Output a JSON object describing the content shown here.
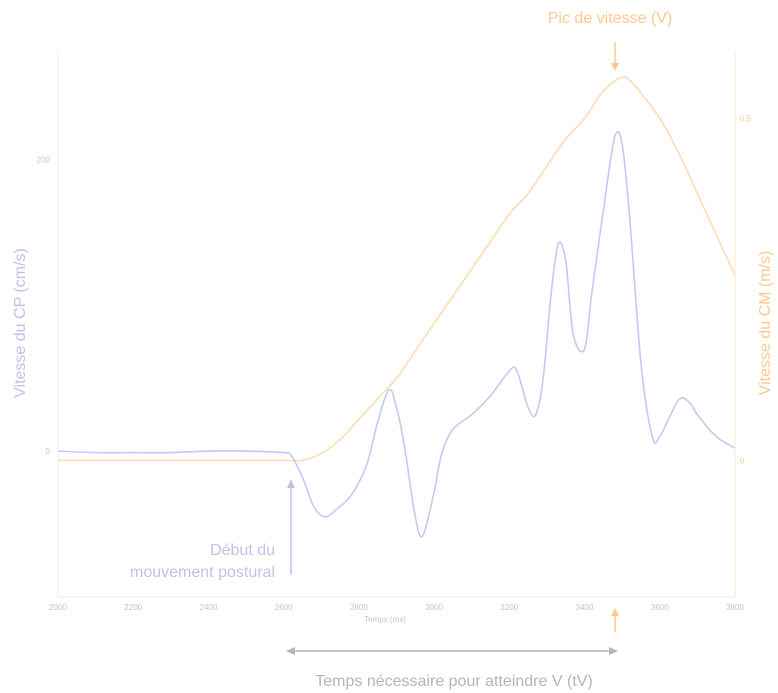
{
  "colors": {
    "cp": "#c6c9ef",
    "cm": "#ffdcb3",
    "cm_text": "#ffc890",
    "cp_text": "#bfc2ea",
    "axis": "#e6e6e6",
    "gray": "#b5b5b5",
    "tick": "#c4c4c4"
  },
  "chart_data": {
    "type": "line",
    "xlabel": "Temps (ms)",
    "xlim": [
      2000,
      3800
    ],
    "x_ticks": [
      "2000",
      "2200",
      "2400",
      "2600",
      "2800",
      "3000",
      "3200",
      "3400",
      "3600",
      "3800"
    ],
    "y_left": {
      "label": "Vitesse du CP (cm/s)",
      "lim": [
        -100,
        275
      ],
      "ticks": [
        "0",
        "200"
      ]
    },
    "y_right": {
      "label": "Vitesse du CM (m/s)",
      "lim": [
        -0.2,
        0.6
      ],
      "ticks": [
        "0",
        "0.5"
      ]
    },
    "series": [
      {
        "axis": "left",
        "x": [
          2000,
          2100,
          2200,
          2300,
          2400,
          2500,
          2600,
          2620,
          2650,
          2680,
          2710,
          2740,
          2780,
          2820,
          2850,
          2880,
          2900,
          2920,
          2950,
          2970,
          3000,
          3020,
          3050,
          3100,
          3150,
          3200,
          3220,
          3250,
          3270,
          3290,
          3310,
          3330,
          3350,
          3370,
          3400,
          3420,
          3450,
          3480,
          3500,
          3520,
          3550,
          3580,
          3600,
          3650,
          3680,
          3700,
          3750,
          3800
        ],
        "y": [
          0,
          -1,
          -1,
          -1,
          0,
          0,
          -1,
          -3,
          -18,
          -38,
          -45,
          -40,
          -30,
          -10,
          20,
          42,
          30,
          5,
          -45,
          -58,
          -28,
          -2,
          15,
          25,
          38,
          55,
          55,
          30,
          25,
          50,
          105,
          142,
          130,
          80,
          70,
          110,
          165,
          215,
          210,
          160,
          60,
          10,
          10,
          35,
          33,
          25,
          10,
          2
        ]
      },
      {
        "axis": "right",
        "x": [
          2000,
          2100,
          2200,
          2300,
          2400,
          2500,
          2600,
          2650,
          2700,
          2750,
          2800,
          2850,
          2900,
          2950,
          3000,
          3050,
          3100,
          3150,
          3200,
          3250,
          3300,
          3350,
          3400,
          3450,
          3500,
          3530,
          3560,
          3600,
          3650,
          3700,
          3750,
          3800
        ],
        "y": [
          0.0,
          0.0,
          0.0,
          0.0,
          0.0,
          0.0,
          0.0,
          0.0,
          0.01,
          0.03,
          0.06,
          0.09,
          0.12,
          0.16,
          0.2,
          0.24,
          0.28,
          0.32,
          0.36,
          0.39,
          0.43,
          0.47,
          0.5,
          0.54,
          0.56,
          0.55,
          0.53,
          0.5,
          0.45,
          0.39,
          0.33,
          0.27
        ]
      }
    ],
    "annotations": {
      "peak_label": "Pic de vitesse (V)",
      "onset_label_line1": "Début du",
      "onset_label_line2": "mouvement postural",
      "span_label": "Temps nécessaire pour atteindre V (tV)",
      "peak_x": 3450,
      "onset_x": 2630
    }
  }
}
